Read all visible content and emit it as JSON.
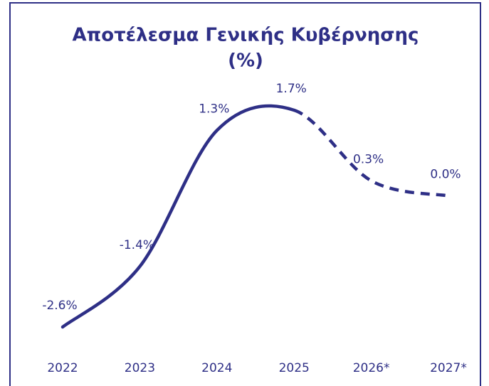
{
  "chart_data": {
    "type": "line",
    "title": [
      "Αποτέλεσμα Γενικής Κυβέρνησης",
      "(%)"
    ],
    "categories": [
      "2022",
      "2023",
      "2024",
      "2025",
      "2026*",
      "2027*"
    ],
    "values": [
      -2.6,
      -1.4,
      1.3,
      1.7,
      0.3,
      0.0
    ],
    "value_labels": [
      "-2.6%",
      "-1.4%",
      "1.3%",
      "1.7%",
      "0.3%",
      "0.0%"
    ],
    "color": "#2e2f86"
  }
}
